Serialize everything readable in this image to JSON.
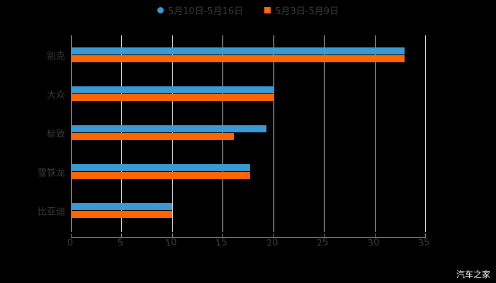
{
  "chart_data": {
    "type": "bar",
    "orientation": "horizontal",
    "title": "",
    "xlabel": "",
    "ylabel": "",
    "categories": [
      "别克",
      "大众",
      "标致",
      "雪铁龙",
      "比亚迪"
    ],
    "series": [
      {
        "name": "5月10日-5月16日",
        "color": "#3a9ad4",
        "values": [
          33.0,
          20.1,
          19.3,
          17.7,
          10.0
        ]
      },
      {
        "name": "5月3日-5月9日",
        "color": "#ff6600",
        "values": [
          33.0,
          20.1,
          16.1,
          17.7,
          10.0
        ]
      }
    ],
    "xlim": [
      0,
      35
    ],
    "xticks": [
      "0",
      "5",
      "10",
      "15",
      "20",
      "25",
      "30",
      "35"
    ],
    "grid": true,
    "legend_position": "top"
  },
  "legend": {
    "items": [
      {
        "label": "5月10日-5月16日",
        "color": "#3a9ad4",
        "marker": "circle"
      },
      {
        "label": "5月3日-5月9日",
        "color": "#ff6600",
        "marker": "square"
      }
    ]
  },
  "watermark": "汽车之家"
}
